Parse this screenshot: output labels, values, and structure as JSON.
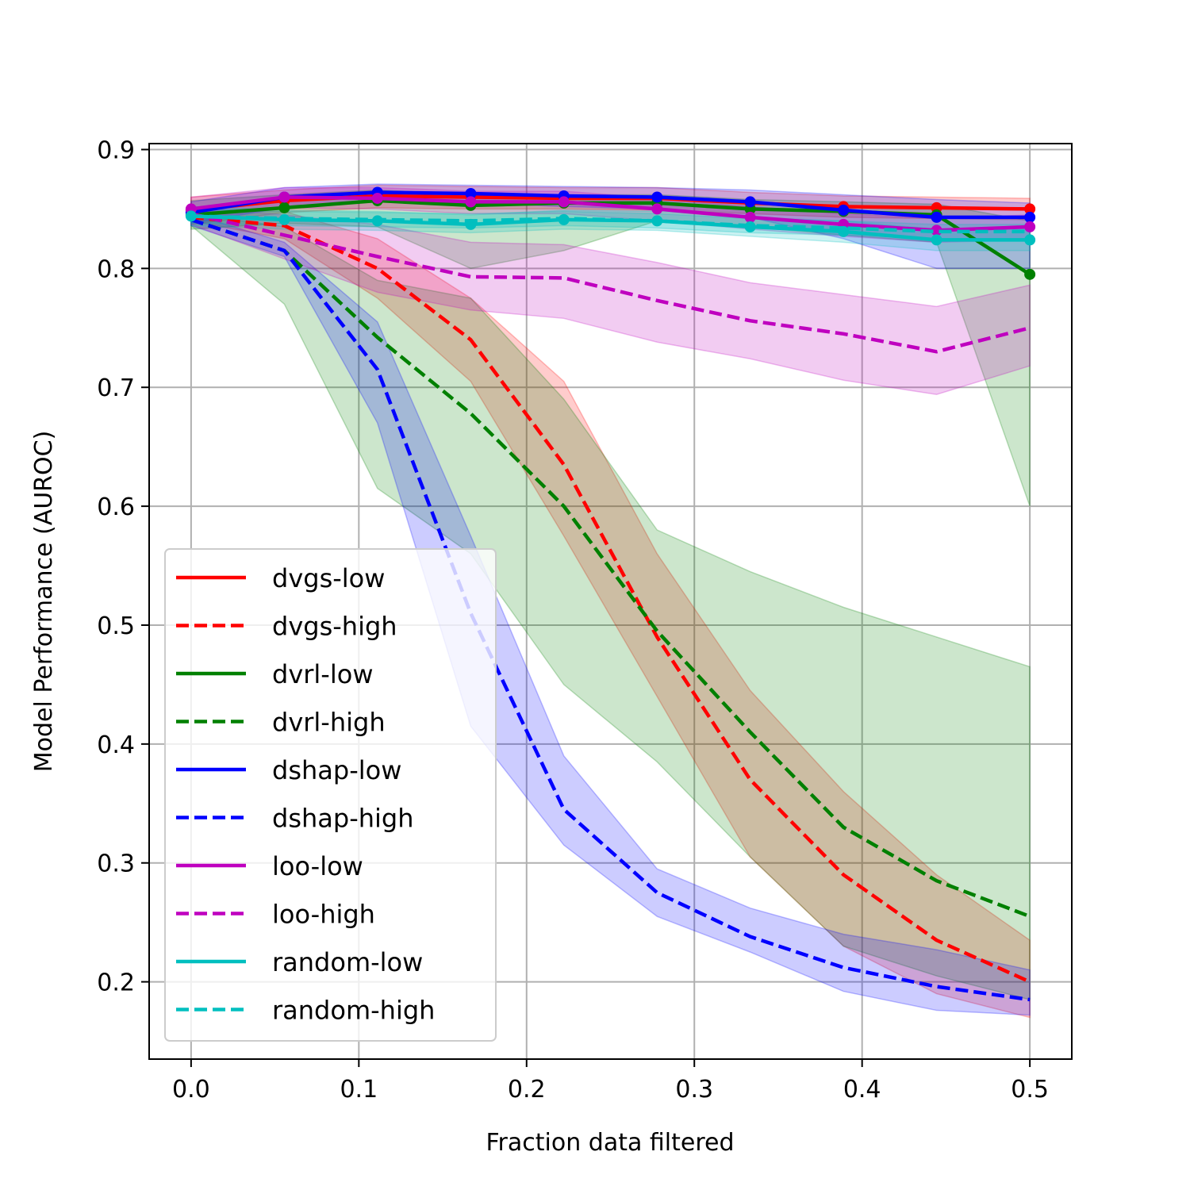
{
  "chart_data": {
    "type": "line",
    "title": "",
    "xlabel": "Fraction data filtered",
    "ylabel": "Model Performance (AUROC)",
    "xlim": [
      -0.025,
      0.525
    ],
    "ylim": [
      0.135,
      0.905
    ],
    "xticks": [
      0.0,
      0.1,
      0.2,
      0.3,
      0.4,
      0.5
    ],
    "xtick_labels": [
      "0.0",
      "0.1",
      "0.2",
      "0.3",
      "0.4",
      "0.5"
    ],
    "yticks": [
      0.2,
      0.3,
      0.4,
      0.5,
      0.6,
      0.7,
      0.8,
      0.9
    ],
    "ytick_labels": [
      "0.2",
      "0.3",
      "0.4",
      "0.5",
      "0.6",
      "0.7",
      "0.8",
      "0.9"
    ],
    "grid": true,
    "legend_position": "lower-left",
    "x": [
      0.0,
      0.0556,
      0.1111,
      0.1667,
      0.2222,
      0.2778,
      0.3333,
      0.3889,
      0.4444,
      0.5
    ],
    "series": [
      {
        "name": "dvgs-low",
        "color": "#ff0000",
        "style": "solid",
        "markers": true,
        "values": [
          0.849,
          0.857,
          0.861,
          0.86,
          0.859,
          0.859,
          0.855,
          0.852,
          0.851,
          0.85
        ],
        "lower": [
          0.837,
          0.847,
          0.851,
          0.85,
          0.85,
          0.849,
          0.846,
          0.843,
          0.842,
          0.841
        ],
        "upper": [
          0.86,
          0.866,
          0.87,
          0.869,
          0.868,
          0.868,
          0.864,
          0.861,
          0.86,
          0.859
        ]
      },
      {
        "name": "dvgs-high",
        "color": "#ff0000",
        "style": "dashed",
        "markers": false,
        "values": [
          0.843,
          0.836,
          0.8,
          0.74,
          0.635,
          0.49,
          0.37,
          0.29,
          0.235,
          0.2
        ],
        "lower": [
          0.84,
          0.825,
          0.775,
          0.705,
          0.575,
          0.44,
          0.305,
          0.23,
          0.19,
          0.17
        ],
        "upper": [
          0.848,
          0.848,
          0.825,
          0.775,
          0.705,
          0.56,
          0.445,
          0.36,
          0.29,
          0.235
        ]
      },
      {
        "name": "dvrl-low",
        "color": "#008000",
        "style": "solid",
        "markers": true,
        "values": [
          0.845,
          0.851,
          0.857,
          0.853,
          0.855,
          0.855,
          0.85,
          0.848,
          0.845,
          0.795
        ],
        "lower": [
          0.833,
          0.838,
          0.835,
          0.8,
          0.815,
          0.84,
          0.835,
          0.828,
          0.822,
          0.6
        ],
        "upper": [
          0.857,
          0.862,
          0.866,
          0.862,
          0.862,
          0.862,
          0.858,
          0.856,
          0.854,
          0.84
        ]
      },
      {
        "name": "dvrl-high",
        "color": "#008000",
        "style": "dashed",
        "markers": false,
        "values": [
          0.841,
          0.815,
          0.742,
          0.678,
          0.6,
          0.495,
          0.41,
          0.33,
          0.285,
          0.255
        ],
        "lower": [
          0.836,
          0.77,
          0.615,
          0.56,
          0.45,
          0.385,
          0.305,
          0.23,
          0.205,
          0.185
        ],
        "upper": [
          0.846,
          0.835,
          0.79,
          0.775,
          0.69,
          0.58,
          0.545,
          0.515,
          0.49,
          0.465
        ]
      },
      {
        "name": "dshap-low",
        "color": "#0000ff",
        "style": "solid",
        "markers": true,
        "values": [
          0.847,
          0.86,
          0.864,
          0.863,
          0.861,
          0.86,
          0.856,
          0.849,
          0.843,
          0.843
        ],
        "lower": [
          0.838,
          0.851,
          0.856,
          0.855,
          0.852,
          0.85,
          0.843,
          0.825,
          0.8,
          0.8
        ],
        "upper": [
          0.856,
          0.868,
          0.871,
          0.87,
          0.869,
          0.868,
          0.866,
          0.862,
          0.858,
          0.855
        ]
      },
      {
        "name": "dshap-high",
        "color": "#0000ff",
        "style": "dashed",
        "markers": false,
        "values": [
          0.841,
          0.815,
          0.715,
          0.51,
          0.345,
          0.275,
          0.238,
          0.212,
          0.196,
          0.185
        ],
        "lower": [
          0.836,
          0.81,
          0.67,
          0.415,
          0.315,
          0.255,
          0.225,
          0.192,
          0.176,
          0.172
        ],
        "upper": [
          0.846,
          0.822,
          0.755,
          0.575,
          0.39,
          0.295,
          0.262,
          0.24,
          0.227,
          0.21
        ]
      },
      {
        "name": "loo-low",
        "color": "#bf00bf",
        "style": "solid",
        "markers": true,
        "values": [
          0.85,
          0.86,
          0.859,
          0.856,
          0.856,
          0.85,
          0.843,
          0.837,
          0.832,
          0.835
        ],
        "lower": [
          0.84,
          0.851,
          0.85,
          0.846,
          0.846,
          0.84,
          0.833,
          0.827,
          0.822,
          0.824
        ],
        "upper": [
          0.86,
          0.868,
          0.868,
          0.865,
          0.865,
          0.859,
          0.852,
          0.846,
          0.842,
          0.845
        ]
      },
      {
        "name": "loo-high",
        "color": "#bf00bf",
        "style": "dashed",
        "markers": false,
        "values": [
          0.846,
          0.828,
          0.81,
          0.793,
          0.792,
          0.773,
          0.756,
          0.745,
          0.73,
          0.75
        ],
        "lower": [
          0.837,
          0.808,
          0.78,
          0.765,
          0.758,
          0.738,
          0.724,
          0.706,
          0.694,
          0.718
        ],
        "upper": [
          0.852,
          0.845,
          0.837,
          0.822,
          0.82,
          0.805,
          0.788,
          0.778,
          0.768,
          0.786
        ]
      },
      {
        "name": "random-low",
        "color": "#00bfbf",
        "style": "solid",
        "markers": true,
        "values": [
          0.844,
          0.841,
          0.84,
          0.837,
          0.841,
          0.84,
          0.835,
          0.831,
          0.824,
          0.824
        ],
        "lower": [
          0.836,
          0.833,
          0.832,
          0.83,
          0.833,
          0.832,
          0.827,
          0.822,
          0.815,
          0.815
        ],
        "upper": [
          0.852,
          0.849,
          0.848,
          0.845,
          0.849,
          0.848,
          0.843,
          0.84,
          0.833,
          0.833
        ]
      },
      {
        "name": "random-high",
        "color": "#00bfbf",
        "style": "dashed",
        "markers": false,
        "values": [
          0.844,
          0.842,
          0.841,
          0.84,
          0.842,
          0.84,
          0.836,
          0.834,
          0.831,
          0.831
        ],
        "lower": [
          0.838,
          0.836,
          0.835,
          0.834,
          0.836,
          0.834,
          0.83,
          0.828,
          0.825,
          0.825
        ],
        "upper": [
          0.85,
          0.848,
          0.847,
          0.846,
          0.848,
          0.846,
          0.842,
          0.84,
          0.837,
          0.837
        ]
      }
    ]
  }
}
